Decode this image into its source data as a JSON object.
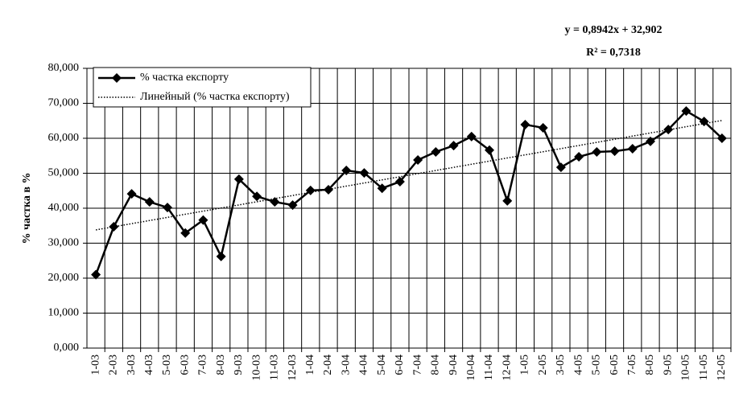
{
  "chart_data": {
    "type": "line",
    "annotations": [
      "y = 0,8942x + 32,902",
      "R² = 0,7318"
    ],
    "y_label": "% частка в %",
    "categories": [
      "1-03",
      "2-03",
      "3-03",
      "4-03",
      "5-03",
      "6-03",
      "7-03",
      "8-03",
      "9-03",
      "10-03",
      "11-03",
      "12-03",
      "1-04",
      "2-04",
      "3-04",
      "4-04",
      "5-04",
      "6-04",
      "7-04",
      "8-04",
      "9-04",
      "10-04",
      "11-04",
      "12-04",
      "1-05",
      "2-05",
      "3-05",
      "4-05",
      "5-05",
      "6-05",
      "7-05",
      "8-05",
      "9-05",
      "10-05",
      "11-05",
      "12-05"
    ],
    "series": [
      {
        "name": "% частка експорту",
        "color": "#000000",
        "marker": "diamond",
        "values": [
          21.0,
          34.7,
          44.1,
          41.8,
          40.2,
          32.9,
          36.6,
          26.2,
          48.3,
          43.4,
          41.8,
          40.9,
          45.1,
          45.3,
          50.8,
          50.1,
          45.7,
          47.6,
          53.8,
          56.1,
          57.9,
          60.5,
          56.6,
          42.1,
          63.9,
          63.0,
          51.7,
          54.7,
          56.1,
          56.3,
          57.0,
          59.1,
          62.5,
          67.8,
          64.8,
          60.0
        ]
      },
      {
        "name": "Линейный (% частка експорту)",
        "color": "#000000",
        "dash": "dotted",
        "values": [
          33.796,
          34.69,
          35.585,
          36.479,
          37.373,
          38.267,
          39.161,
          40.056,
          40.95,
          41.844,
          42.738,
          43.632,
          44.527,
          45.421,
          46.315,
          47.209,
          48.103,
          48.998,
          49.892,
          50.786,
          51.68,
          52.574,
          53.469,
          54.363,
          55.257,
          56.151,
          57.045,
          57.94,
          58.834,
          59.728,
          60.622,
          61.516,
          62.411,
          63.305,
          64.199,
          65.093
        ]
      }
    ],
    "ylim": [
      0,
      80
    ],
    "yticks": [
      {
        "value": 0,
        "label": "0,000"
      },
      {
        "value": 10,
        "label": "10,000"
      },
      {
        "value": 20,
        "label": "20,000"
      },
      {
        "value": 30,
        "label": "30,000"
      },
      {
        "value": 40,
        "label": "40,000"
      },
      {
        "value": 50,
        "label": "50,000"
      },
      {
        "value": 60,
        "label": "60,000"
      },
      {
        "value": 70,
        "label": "70,000"
      },
      {
        "value": 80,
        "label": "80,000"
      }
    ],
    "grid": true
  }
}
